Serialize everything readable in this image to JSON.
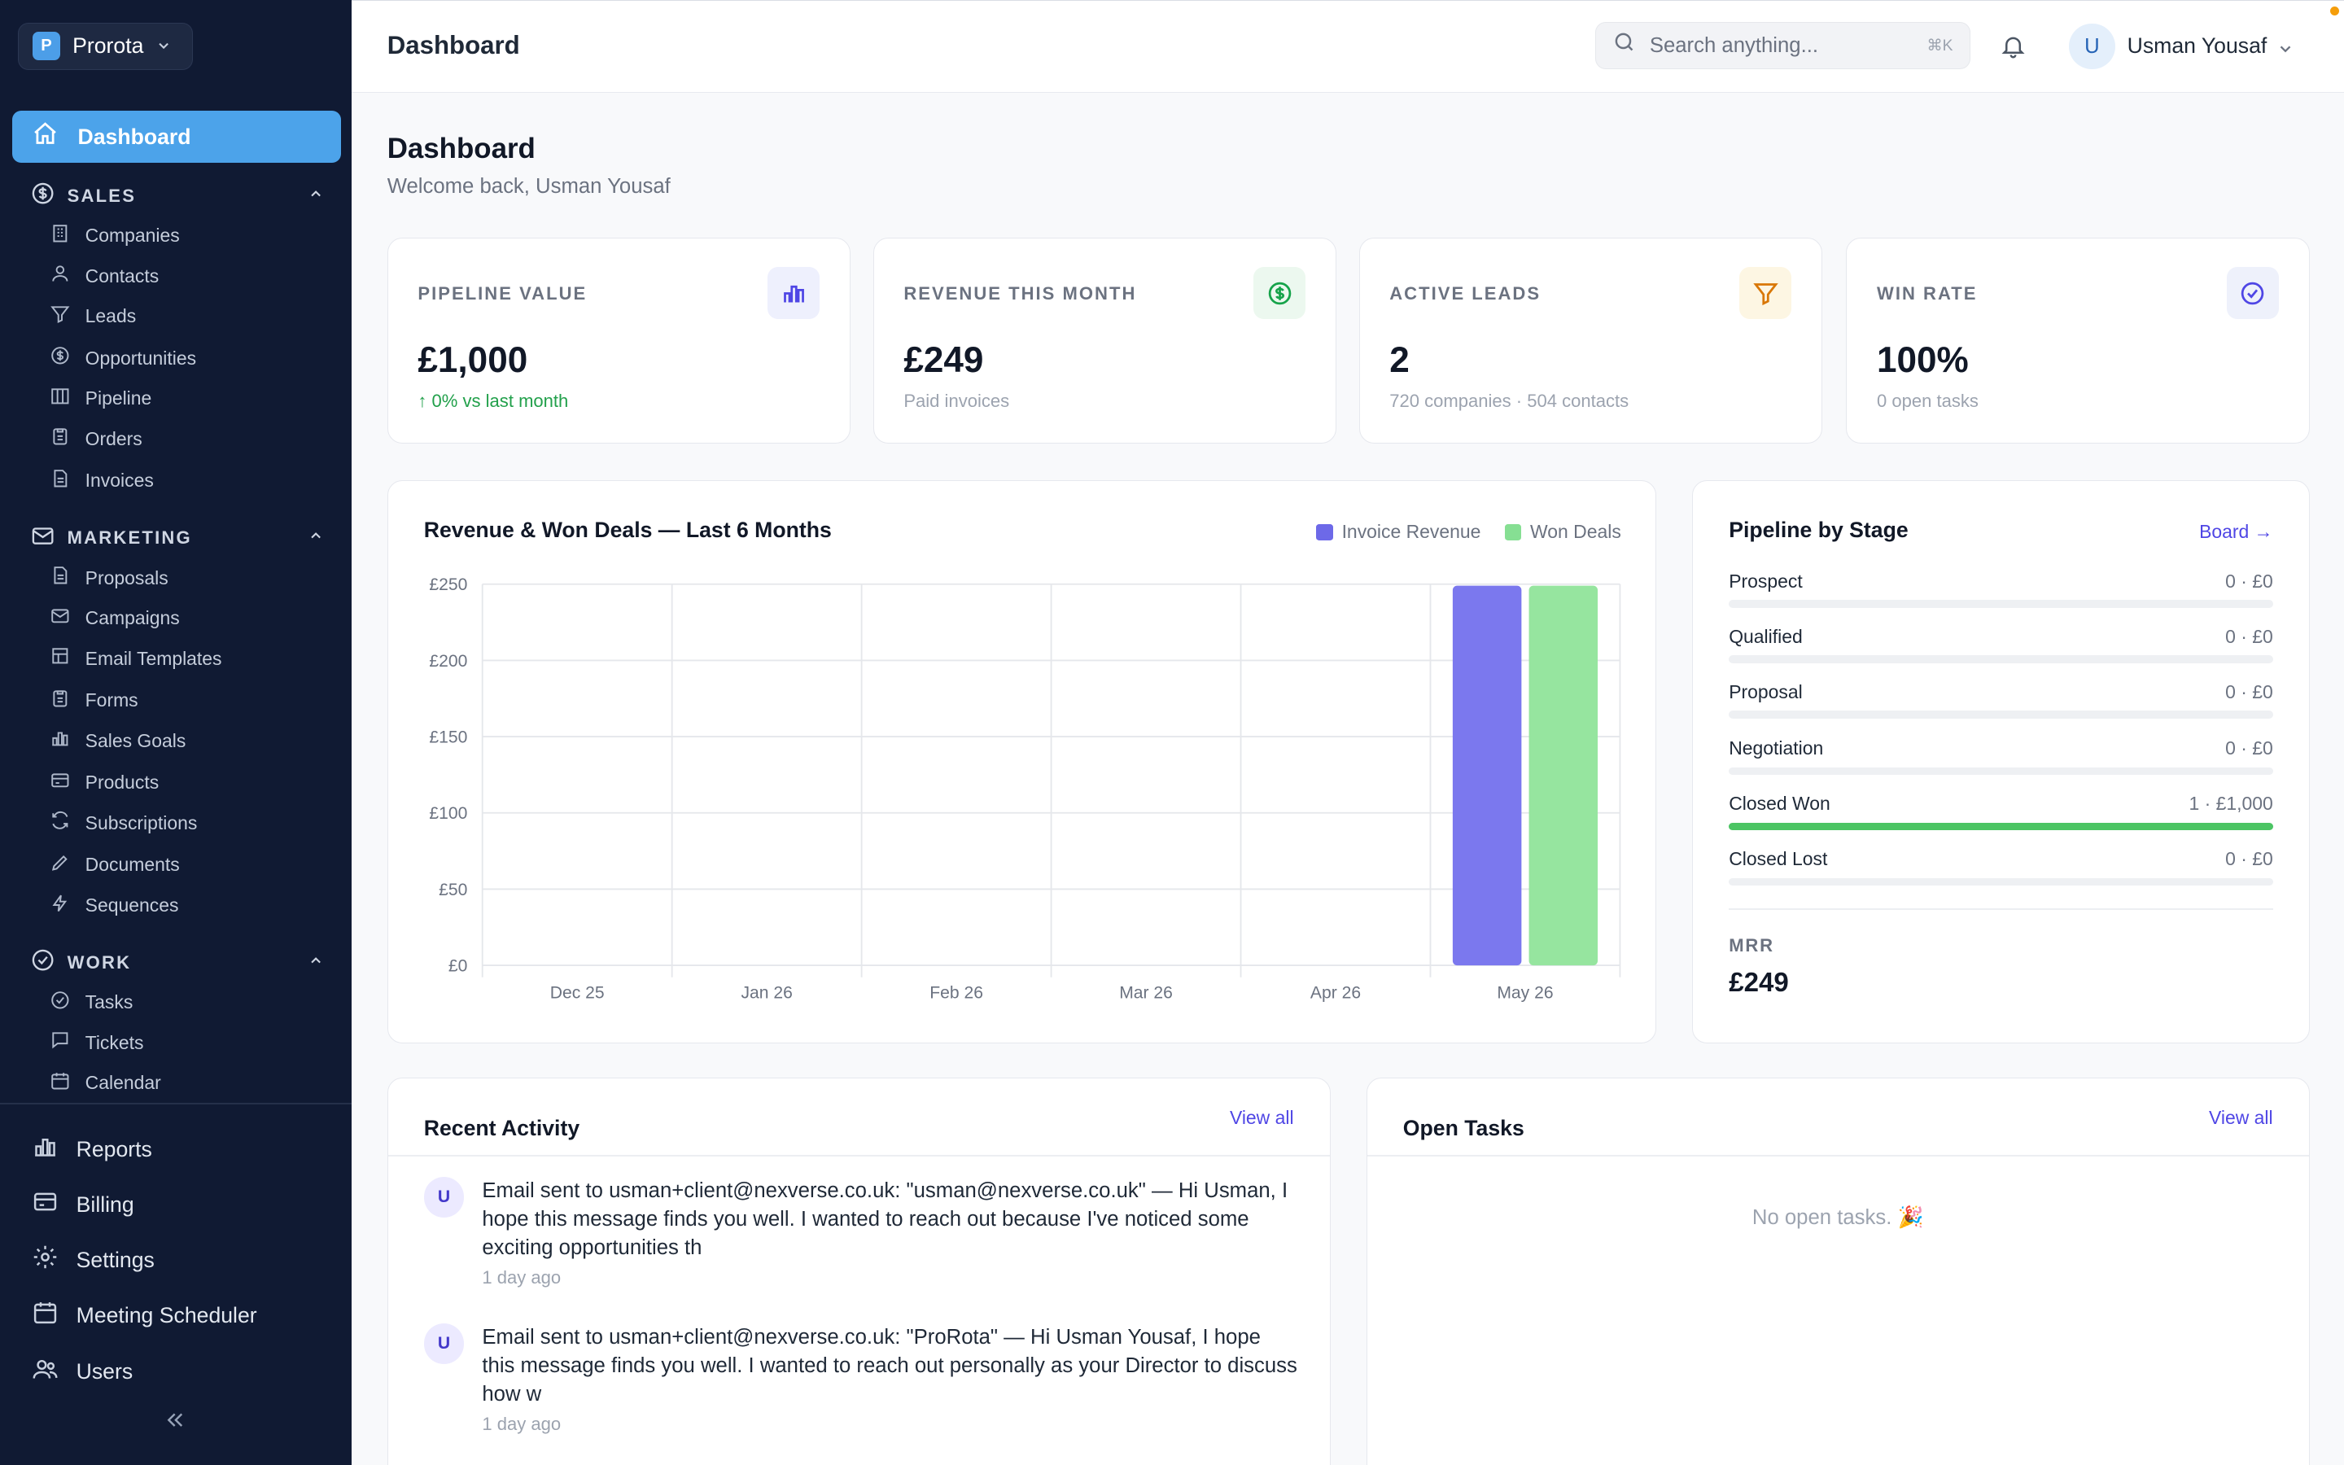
{
  "org": {
    "badge": "P",
    "name": "Prorota"
  },
  "nav": {
    "active": "Dashboard",
    "sections": [
      {
        "title": "SALES",
        "items": [
          "Companies",
          "Contacts",
          "Leads",
          "Opportunities",
          "Pipeline",
          "Orders",
          "Invoices"
        ]
      },
      {
        "title": "MARKETING",
        "items": [
          "Proposals",
          "Campaigns",
          "Email Templates",
          "Forms",
          "Sales Goals",
          "Products",
          "Subscriptions",
          "Documents",
          "Sequences"
        ]
      },
      {
        "title": "WORK",
        "items": [
          "Tasks",
          "Tickets",
          "Calendar"
        ]
      }
    ],
    "bottom": [
      "Reports",
      "Billing",
      "Settings",
      "Meeting Scheduler",
      "Users"
    ]
  },
  "topbar": {
    "title": "Dashboard",
    "search_placeholder": "Search anything...",
    "search_shortcut": "⌘K",
    "user_initial": "U",
    "user_name": "Usman Yousaf"
  },
  "page": {
    "title": "Dashboard",
    "subtitle": "Welcome back, Usman Yousaf"
  },
  "kpis": [
    {
      "label": "PIPELINE VALUE",
      "value": "£1,000",
      "sub": "↑ 0% vs last month",
      "icon": "bar-chart-icon",
      "accent": "#4f46e5",
      "bg": "#eef0fd"
    },
    {
      "label": "REVENUE THIS MONTH",
      "value": "£249",
      "sub": "Paid invoices",
      "icon": "dollar-icon",
      "accent": "#16a34a",
      "bg": "#ecf8ef"
    },
    {
      "label": "ACTIVE LEADS",
      "value": "2",
      "sub": "720 companies · 504 contacts",
      "icon": "funnel-icon",
      "accent": "#d97706",
      "bg": "#fdf6e3"
    },
    {
      "label": "WIN RATE",
      "value": "100%",
      "sub": "0 open tasks",
      "icon": "check-circle-icon",
      "accent": "#4f46e5",
      "bg": "#eef1fb"
    }
  ],
  "chart_data": {
    "type": "bar",
    "title": "Revenue & Won Deals — Last 6 Months",
    "categories": [
      "Dec 25",
      "Jan 26",
      "Feb 26",
      "Mar 26",
      "Apr 26",
      "May 26"
    ],
    "series": [
      {
        "name": "Invoice Revenue",
        "values": [
          0,
          0,
          0,
          0,
          0,
          249
        ],
        "color": "#7b78ee"
      },
      {
        "name": "Won Deals",
        "values": [
          0,
          0,
          0,
          0,
          0,
          249
        ],
        "color": "#96e59f"
      }
    ],
    "ylim": [
      0,
      250
    ],
    "yticks": [
      "£0",
      "£50",
      "£100",
      "£150",
      "£200",
      "£250"
    ],
    "grid": true,
    "legend": "top-right"
  },
  "pipeline": {
    "title": "Pipeline by Stage",
    "link": "Board →",
    "stages": [
      {
        "name": "Prospect",
        "value": "0 · £0",
        "fill": 0
      },
      {
        "name": "Qualified",
        "value": "0 · £0",
        "fill": 0
      },
      {
        "name": "Proposal",
        "value": "0 · £0",
        "fill": 0
      },
      {
        "name": "Negotiation",
        "value": "0 · £0",
        "fill": 0
      },
      {
        "name": "Closed Won",
        "value": "1 · £1,000",
        "fill": 1
      },
      {
        "name": "Closed Lost",
        "value": "0 · £0",
        "fill": 0
      }
    ],
    "mrr_label": "MRR",
    "mrr_value": "£249"
  },
  "activity": {
    "title": "Recent Activity",
    "link": "View all",
    "items": [
      {
        "initial": "U",
        "text": "Email sent to usman+client@nexverse.co.uk: \"usman@nexverse.co.uk\" — Hi Usman, I hope this message finds you well. I wanted to reach out because I've noticed some exciting opportunities th",
        "time": "1 day ago"
      },
      {
        "initial": "U",
        "text": "Email sent to usman+client@nexverse.co.uk: \"ProRota\" — Hi Usman Yousaf, I hope this message finds you well. I wanted to reach out personally as your Director to discuss how w",
        "time": "1 day ago"
      }
    ]
  },
  "tasks": {
    "title": "Open Tasks",
    "link": "View all",
    "empty": "No open tasks. 🎉"
  }
}
